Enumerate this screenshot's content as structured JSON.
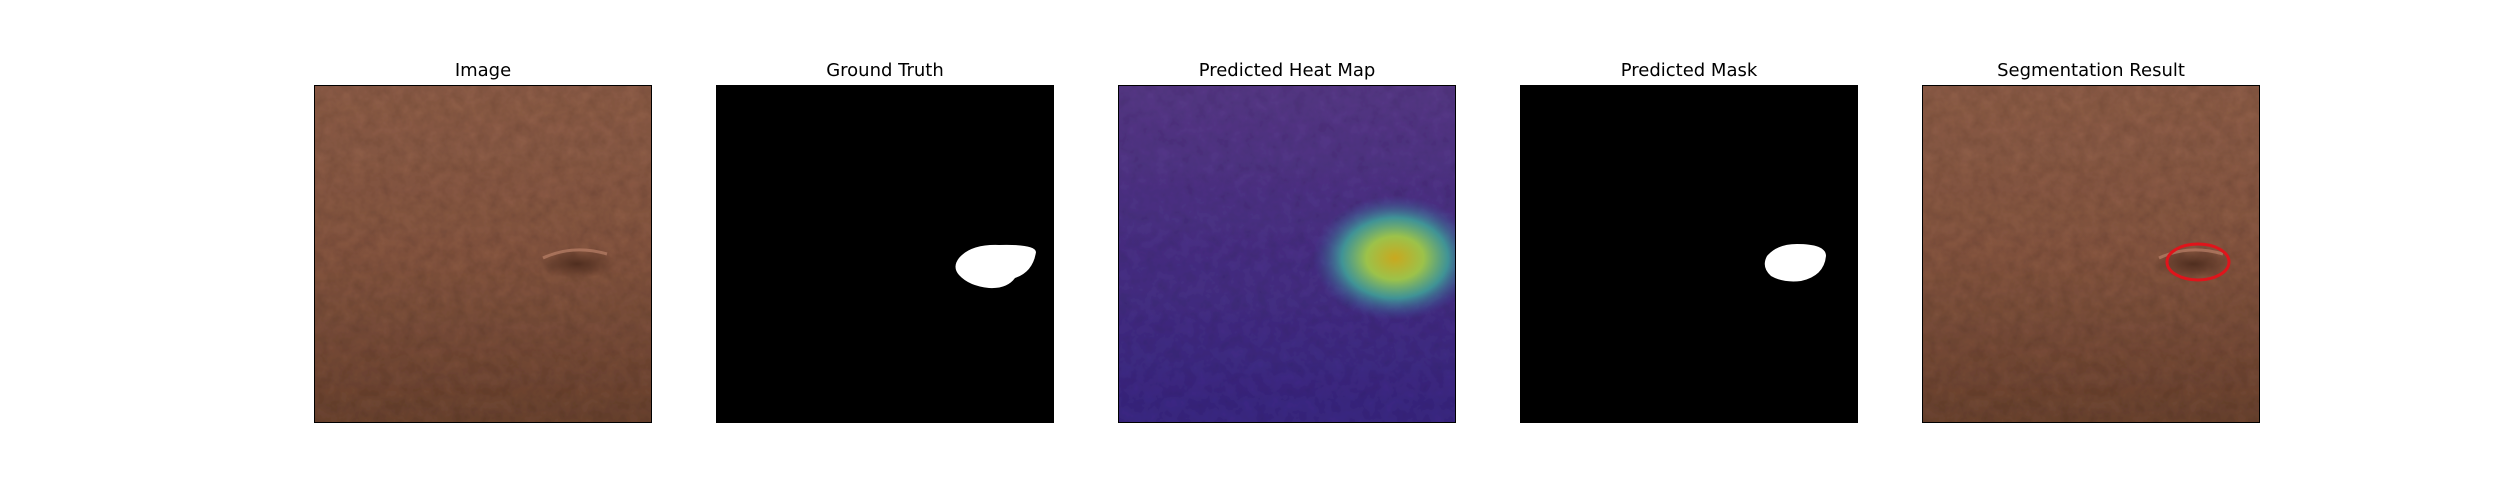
{
  "figure": {
    "panels": [
      {
        "title": "Image",
        "content": "leather-photo"
      },
      {
        "title": "Ground Truth",
        "content": "binary-mask"
      },
      {
        "title": "Predicted Heat Map",
        "content": "heatmap-overlay"
      },
      {
        "title": "Predicted Mask",
        "content": "binary-mask"
      },
      {
        "title": "Segmentation Result",
        "content": "leather-photo-with-contour"
      }
    ],
    "colors": {
      "leather": "#8b5a45",
      "mask_background": "#000000",
      "mask_foreground": "#ffffff",
      "heatmap_low": "#3b2a8f",
      "heatmap_high": "#c9b21f",
      "contour": "#e0141b"
    }
  }
}
